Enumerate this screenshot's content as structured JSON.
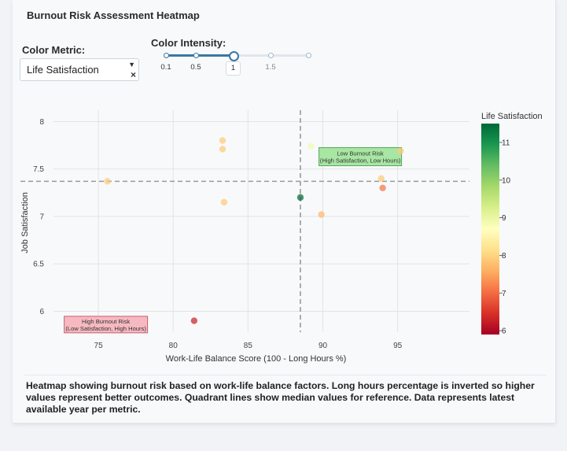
{
  "header": {
    "title": "Burnout Risk Assessment Heatmap"
  },
  "controls": {
    "color_metric_label": "Color Metric:",
    "color_metric_value": "Life Satisfaction",
    "color_intensity_label": "Color Intensity:",
    "intensity_marks": [
      "0.1",
      "0.5",
      "1",
      "1.5"
    ],
    "intensity_value": 1,
    "intensity_min": 0.1,
    "intensity_max": 2
  },
  "caption": "Heatmap showing burnout risk based on work-life balance factors. Long hours percentage is inverted so higher values represent better outcomes. Quadrant lines show median values for reference. Data represents latest available year per metric.",
  "chart_data": {
    "type": "scatter",
    "title": "",
    "xlabel": "Work-Life Balance Score (100 - Long Hours %)",
    "ylabel": "Job Satisfaction",
    "xlim": [
      72,
      99.8
    ],
    "ylim": [
      5.78,
      8.12
    ],
    "xticks": [
      75,
      80,
      85,
      90,
      95
    ],
    "yticks": [
      6,
      6.5,
      7,
      7.5,
      8
    ],
    "ytick_labels": [
      "6",
      "6.5",
      "7",
      "7.5",
      "8"
    ],
    "grid": true,
    "median_x": 88.5,
    "median_y": 7.37,
    "colorbar": {
      "title": "Life Satisfaction",
      "min": 5.9,
      "max": 11.5,
      "ticks": [
        6,
        7,
        8,
        9,
        10,
        11
      ],
      "colorscale": [
        "#a50026",
        "#d73027",
        "#f46d43",
        "#fdae61",
        "#fee08b",
        "#ffffbf",
        "#d9ef8b",
        "#a6d96a",
        "#66bd63",
        "#1a9850",
        "#006837"
      ]
    },
    "annotations": [
      {
        "line1": "Low Burnout Risk",
        "line2": "(High Satisfaction, Low Hours)",
        "x": 92.5,
        "y": 7.63,
        "bg": "#a8e6a3",
        "border": "#5aa55a"
      },
      {
        "line1": "High Burnout Risk",
        "line2": "(Low Satisfaction, High Hours)",
        "x": 75.5,
        "y": 5.86,
        "bg": "#f6b9c1",
        "border": "#c9606e"
      }
    ],
    "points": [
      {
        "x": 75.6,
        "y": 7.37,
        "c": 7.9
      },
      {
        "x": 81.4,
        "y": 5.9,
        "c": 6.3
      },
      {
        "x": 83.3,
        "y": 7.8,
        "c": 7.9
      },
      {
        "x": 83.3,
        "y": 7.71,
        "c": 7.9
      },
      {
        "x": 83.4,
        "y": 7.15,
        "c": 7.9
      },
      {
        "x": 88.5,
        "y": 7.2,
        "c": 11.5
      },
      {
        "x": 89.2,
        "y": 7.74,
        "c": 8.9
      },
      {
        "x": 89.9,
        "y": 7.02,
        "c": 7.7
      },
      {
        "x": 93.9,
        "y": 7.4,
        "c": 7.9
      },
      {
        "x": 94.0,
        "y": 7.3,
        "c": 7.1
      },
      {
        "x": 95.2,
        "y": 7.69,
        "c": 7.9
      }
    ]
  }
}
